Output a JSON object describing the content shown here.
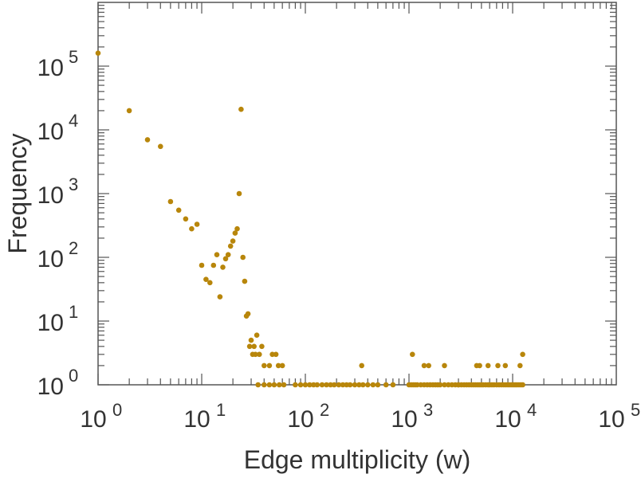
{
  "chart_data": {
    "type": "scatter",
    "title": "",
    "xlabel": "Edge multiplicity (w)",
    "ylabel": "Frequency",
    "xscale": "log",
    "yscale": "log",
    "xlim": [
      1,
      100000
    ],
    "ylim": [
      1,
      1000000
    ],
    "grid": false,
    "legend": "none",
    "marker_color": "#b8860b",
    "x_ticks": [
      {
        "base": "10",
        "exp": "0"
      },
      {
        "base": "10",
        "exp": "1"
      },
      {
        "base": "10",
        "exp": "2"
      },
      {
        "base": "10",
        "exp": "3"
      },
      {
        "base": "10",
        "exp": "4"
      },
      {
        "base": "10",
        "exp": "5"
      }
    ],
    "y_ticks": [
      {
        "base": "10",
        "exp": "0"
      },
      {
        "base": "10",
        "exp": "1"
      },
      {
        "base": "10",
        "exp": "2"
      },
      {
        "base": "10",
        "exp": "3"
      },
      {
        "base": "10",
        "exp": "4"
      },
      {
        "base": "10",
        "exp": "5"
      }
    ],
    "points": [
      [
        1,
        160000
      ],
      [
        2,
        20000
      ],
      [
        3,
        7000
      ],
      [
        4,
        5500
      ],
      [
        5,
        750
      ],
      [
        6,
        550
      ],
      [
        7,
        400
      ],
      [
        8,
        280
      ],
      [
        9,
        330
      ],
      [
        10,
        75
      ],
      [
        11,
        45
      ],
      [
        12,
        40
      ],
      [
        13,
        75
      ],
      [
        14,
        110
      ],
      [
        15,
        24
      ],
      [
        16,
        70
      ],
      [
        17,
        95
      ],
      [
        18,
        110
      ],
      [
        19,
        150
      ],
      [
        20,
        180
      ],
      [
        21,
        240
      ],
      [
        22,
        280
      ],
      [
        23,
        1000
      ],
      [
        24,
        21000
      ],
      [
        25,
        100
      ],
      [
        26,
        42
      ],
      [
        27,
        12
      ],
      [
        28,
        13
      ],
      [
        29,
        4
      ],
      [
        30,
        5
      ],
      [
        31,
        3
      ],
      [
        32,
        4
      ],
      [
        33,
        3
      ],
      [
        34,
        6
      ],
      [
        36,
        3
      ],
      [
        38,
        4
      ],
      [
        40,
        2
      ],
      [
        45,
        2
      ],
      [
        48,
        3
      ],
      [
        52,
        3
      ],
      [
        55,
        2
      ],
      [
        60,
        2
      ],
      [
        35,
        1
      ],
      [
        40,
        1
      ],
      [
        45,
        1
      ],
      [
        50,
        1
      ],
      [
        56,
        1
      ],
      [
        62,
        1
      ],
      [
        80,
        1
      ],
      [
        90,
        1
      ],
      [
        100,
        1
      ],
      [
        110,
        1
      ],
      [
        120,
        1
      ],
      [
        130,
        1
      ],
      [
        145,
        1
      ],
      [
        160,
        1
      ],
      [
        175,
        1
      ],
      [
        190,
        1
      ],
      [
        210,
        1
      ],
      [
        230,
        1
      ],
      [
        250,
        1
      ],
      [
        270,
        1
      ],
      [
        300,
        1
      ],
      [
        330,
        1
      ],
      [
        360,
        1
      ],
      [
        400,
        1
      ],
      [
        450,
        1
      ],
      [
        500,
        1
      ],
      [
        600,
        1
      ],
      [
        700,
        1
      ],
      [
        1000,
        1
      ],
      [
        1050,
        1
      ],
      [
        1100,
        1
      ],
      [
        1150,
        1
      ],
      [
        1200,
        1
      ],
      [
        1300,
        1
      ],
      [
        1400,
        1
      ],
      [
        1500,
        1
      ],
      [
        1600,
        1
      ],
      [
        1700,
        1
      ],
      [
        1800,
        1
      ],
      [
        1900,
        1
      ],
      [
        2000,
        1
      ],
      [
        2200,
        1
      ],
      [
        2400,
        1
      ],
      [
        2600,
        1
      ],
      [
        2800,
        1
      ],
      [
        3000,
        1
      ],
      [
        3200,
        1
      ],
      [
        3400,
        1
      ],
      [
        3600,
        1
      ],
      [
        3800,
        1
      ],
      [
        4000,
        1
      ],
      [
        4200,
        1
      ],
      [
        4400,
        1
      ],
      [
        4600,
        1
      ],
      [
        4800,
        1
      ],
      [
        5000,
        1
      ],
      [
        5200,
        1
      ],
      [
        5500,
        1
      ],
      [
        5800,
        1
      ],
      [
        6000,
        1
      ],
      [
        6300,
        1
      ],
      [
        6600,
        1
      ],
      [
        7000,
        1
      ],
      [
        7400,
        1
      ],
      [
        7800,
        1
      ],
      [
        8200,
        1
      ],
      [
        8600,
        1
      ],
      [
        9000,
        1
      ],
      [
        9400,
        1
      ],
      [
        9800,
        1
      ],
      [
        10200,
        1
      ],
      [
        10600,
        1
      ],
      [
        11000,
        1
      ],
      [
        11500,
        1
      ],
      [
        12000,
        1
      ],
      [
        12500,
        1
      ],
      [
        350,
        2
      ],
      [
        1080,
        3
      ],
      [
        1400,
        2
      ],
      [
        1550,
        2
      ],
      [
        2200,
        2
      ],
      [
        3000,
        1
      ],
      [
        4500,
        2
      ],
      [
        4800,
        2
      ],
      [
        5800,
        2
      ],
      [
        7200,
        2
      ],
      [
        8500,
        2
      ],
      [
        11800,
        2
      ],
      [
        12500,
        3
      ]
    ]
  }
}
